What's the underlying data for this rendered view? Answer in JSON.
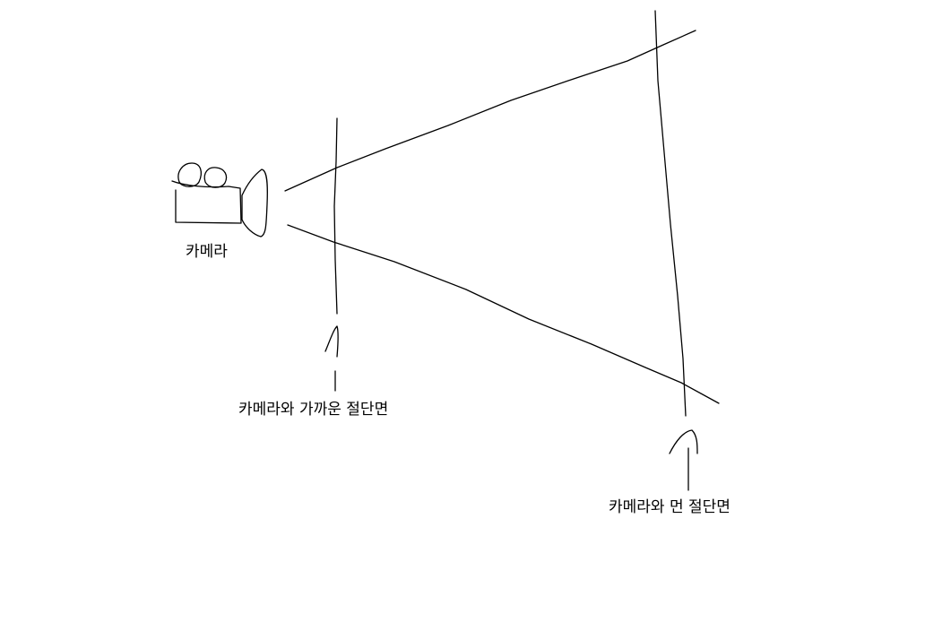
{
  "labels": {
    "camera": "카메라",
    "near_plane": "카메라와 가까운 절단면",
    "far_plane": "카메라와 먼 절단면"
  },
  "colors": {
    "background": "#ffffff",
    "stroke": "#000000"
  }
}
